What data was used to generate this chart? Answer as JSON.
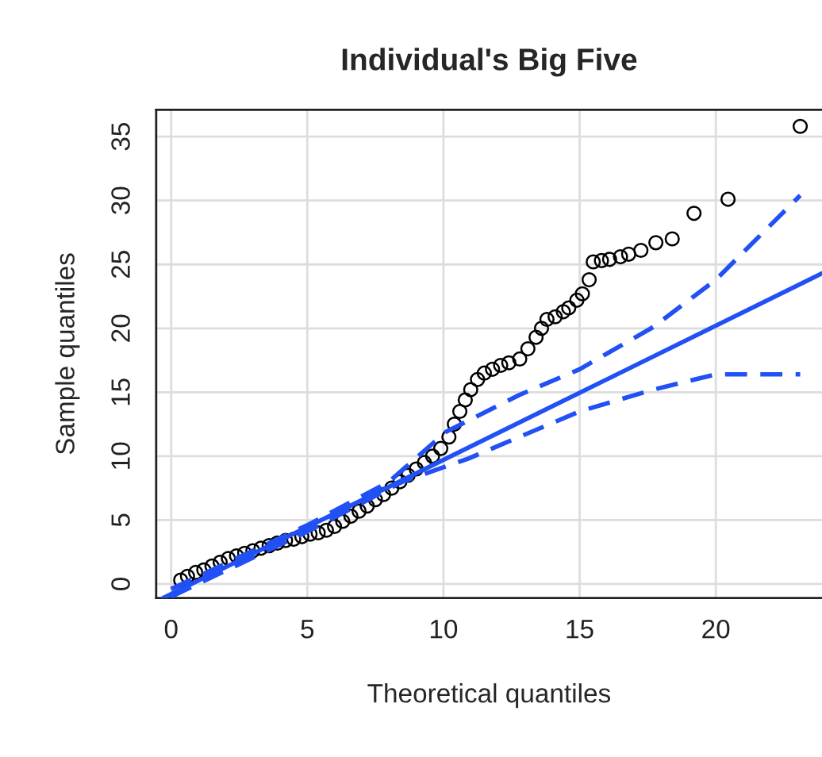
{
  "chart_data": {
    "type": "scatter",
    "title": "Individual's Big Five",
    "xlabel": "Theoretical quantiles",
    "ylabel": "Sample quantiles",
    "xlim": [
      -0.55,
      23.9
    ],
    "ylim": [
      -1.1,
      37.1
    ],
    "xticks": [
      0,
      5,
      10,
      15,
      20
    ],
    "yticks": [
      0,
      5,
      10,
      15,
      20,
      25,
      30,
      35
    ],
    "grid": true,
    "series": [
      {
        "marker": "circle",
        "color": "#000000",
        "x": [
          0.35,
          0.6,
          0.9,
          1.2,
          1.5,
          1.8,
          2.1,
          2.4,
          2.7,
          3.0,
          3.3,
          3.6,
          3.9,
          4.2,
          4.5,
          4.8,
          5.1,
          5.4,
          5.7,
          6.0,
          6.3,
          6.6,
          6.9,
          7.2,
          7.5,
          7.8,
          8.1,
          8.4,
          8.7,
          9.0,
          9.3,
          9.6,
          9.9,
          10.2,
          10.4,
          10.6,
          10.8,
          11.0,
          11.25,
          11.5,
          11.8,
          12.1,
          12.4,
          12.8,
          13.1,
          13.4,
          13.6,
          13.8,
          14.1,
          14.4,
          14.6,
          14.9,
          15.1,
          15.35,
          15.5,
          15.8,
          16.1,
          16.5,
          16.8,
          17.25,
          17.8,
          18.4,
          19.2,
          20.45,
          23.1
        ],
        "values": [
          0.3,
          0.6,
          0.9,
          1.1,
          1.4,
          1.7,
          2.0,
          2.2,
          2.4,
          2.6,
          2.8,
          3.0,
          3.2,
          3.4,
          3.5,
          3.7,
          3.9,
          4.0,
          4.2,
          4.5,
          4.9,
          5.3,
          5.7,
          6.1,
          6.6,
          7.0,
          7.5,
          8.0,
          8.5,
          9.0,
          9.5,
          10.0,
          10.6,
          11.5,
          12.5,
          13.5,
          14.4,
          15.2,
          16.0,
          16.5,
          16.8,
          17.1,
          17.3,
          17.6,
          18.4,
          19.3,
          20.0,
          20.7,
          20.9,
          21.3,
          21.6,
          22.2,
          22.7,
          23.8,
          25.2,
          25.3,
          25.4,
          25.6,
          25.8,
          26.1,
          26.7,
          27.0,
          29.0,
          30.1,
          35.8
        ]
      },
      {
        "type": "line",
        "line_style": "solid",
        "color": "#2150f5",
        "x": [
          -0.3,
          23.9
        ],
        "values": [
          -1.1,
          24.3
        ]
      },
      {
        "type": "line",
        "line_style": "dashed",
        "color": "#2150f5",
        "x": [
          0,
          5,
          8,
          10.09,
          12.8,
          15.0,
          17.7,
          20.0,
          23.1
        ],
        "values": [
          -0.4,
          4.6,
          8.0,
          11.9,
          14.8,
          16.8,
          20.1,
          23.8,
          30.4
        ]
      },
      {
        "type": "line",
        "line_style": "dashed",
        "color": "#2150f5",
        "x": [
          0,
          5,
          8.5,
          10.9,
          15.0,
          17.7,
          20.0,
          23.1
        ],
        "values": [
          -1.0,
          4.1,
          8.0,
          9.8,
          13.5,
          15.2,
          16.4,
          16.4
        ]
      }
    ]
  }
}
